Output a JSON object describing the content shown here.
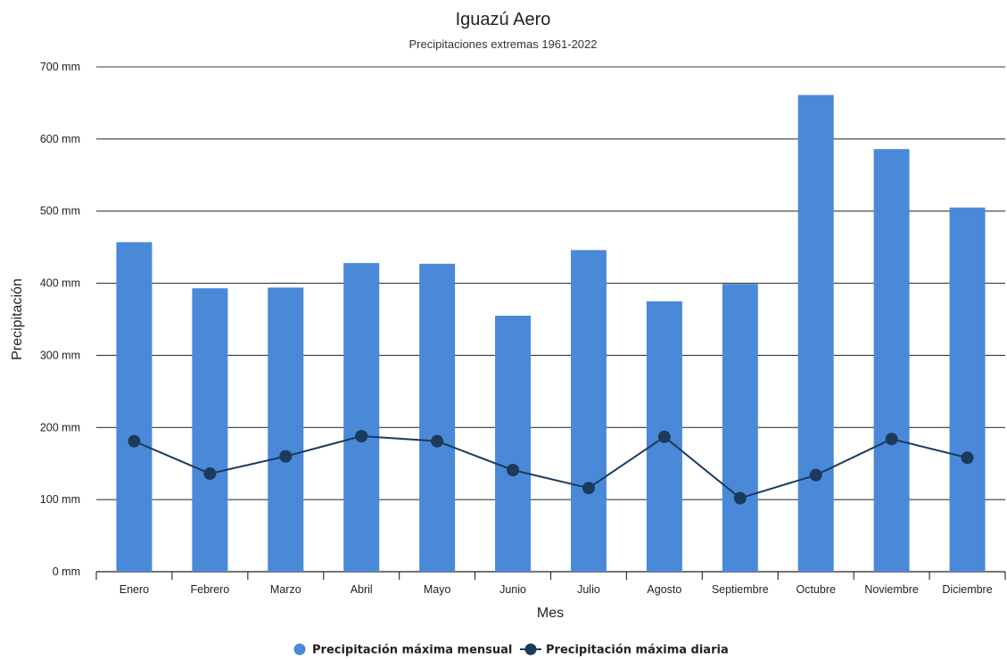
{
  "chart_data": {
    "type": "bar",
    "title": "Iguazú Aero",
    "subtitle": "Precipitaciones extremas 1961-2022",
    "xlabel": "Mes",
    "ylabel": "Precipitación",
    "ylim": [
      0,
      700
    ],
    "yticks": [
      0,
      100,
      200,
      300,
      400,
      500,
      600,
      700
    ],
    "ytick_labels": [
      "0 mm",
      "100 mm",
      "200 mm",
      "300 mm",
      "400 mm",
      "500 mm",
      "600 mm",
      "700 mm"
    ],
    "grid": true,
    "legend_position": "bottom",
    "categories": [
      "Enero",
      "Febrero",
      "Marzo",
      "Abril",
      "Mayo",
      "Junio",
      "Julio",
      "Agosto",
      "Septiembre",
      "Octubre",
      "Noviembre",
      "Diciembre"
    ],
    "series": [
      {
        "name": "Precipitación máxima mensual",
        "type": "bar",
        "color": "#4a89d8",
        "values": [
          457,
          393,
          394,
          428,
          427,
          355,
          446,
          375,
          399,
          661,
          586,
          505
        ]
      },
      {
        "name": "Precipitación máxima diaria",
        "type": "line",
        "color": "#1b3a5c",
        "values": [
          181,
          136,
          160,
          188,
          181,
          141,
          116,
          187,
          102,
          134,
          184,
          158
        ]
      }
    ]
  }
}
